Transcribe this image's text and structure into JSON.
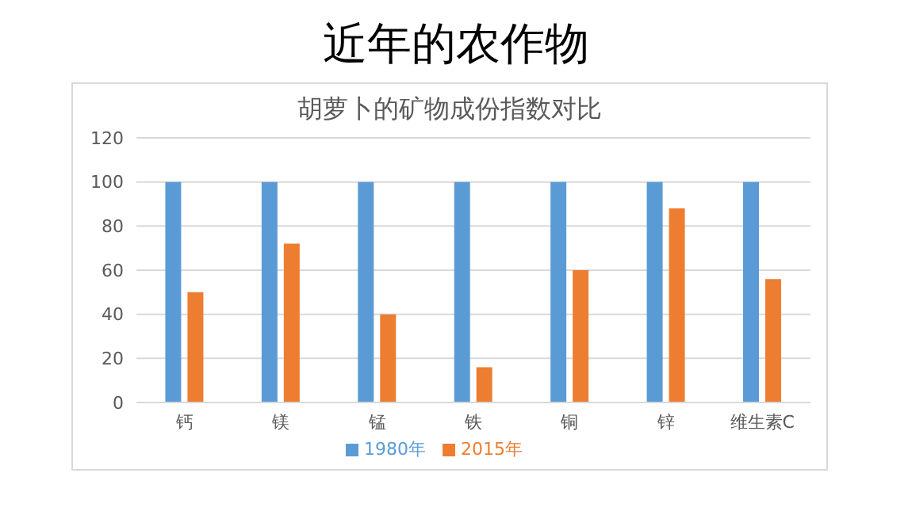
{
  "chart_data": {
    "type": "bar",
    "title": "近年的农作物",
    "subtitle": "胡萝卜的矿物成份指数对比",
    "categories": [
      "钙",
      "镁",
      "锰",
      "铁",
      "铜",
      "锌",
      "维生素C"
    ],
    "series": [
      {
        "name": "1980年",
        "color": "#5b9bd5",
        "values": [
          100,
          100,
          100,
          100,
          100,
          100,
          100
        ]
      },
      {
        "name": "2015年",
        "color": "#ed7d31",
        "values": [
          50,
          72,
          40,
          16,
          60,
          88,
          56
        ]
      }
    ],
    "ylim": [
      0,
      120
    ],
    "yticks": [
      0,
      20,
      40,
      60,
      80,
      100,
      120
    ],
    "grid": "y",
    "legend": "bottom"
  }
}
